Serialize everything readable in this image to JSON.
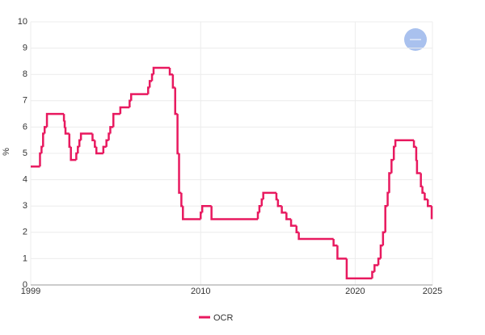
{
  "chart_data": {
    "type": "line",
    "step": true,
    "y_label": "%",
    "x": [
      1999,
      1999.6,
      1999.7,
      1999.8,
      1999.9,
      2000.05,
      2001.15,
      2001.2,
      2001.25,
      2001.5,
      2001.6,
      2001.95,
      2002.05,
      2002.15,
      2002.25,
      2003.0,
      2003.15,
      2003.25,
      2003.7,
      2003.9,
      2004.05,
      2004.15,
      2004.35,
      2004.8,
      2005.4,
      2005.5,
      2006.6,
      2006.7,
      2006.85,
      2006.95,
      2008.0,
      2008.2,
      2008.35,
      2008.5,
      2008.6,
      2008.75,
      2008.85,
      2010.0,
      2010.1,
      2010.7,
      2013.7,
      2013.8,
      2013.95,
      2014.05,
      2014.9,
      2015.0,
      2015.25,
      2015.55,
      2015.85,
      2016.2,
      2016.35,
      2018.6,
      2018.85,
      2019.45,
      2021.1,
      2021.25,
      2021.5,
      2021.65,
      2021.8,
      2021.95,
      2022.1,
      2022.2,
      2022.35,
      2022.5,
      2022.6,
      2023.8,
      2023.95,
      2024.0,
      2024.25,
      2024.35,
      2024.5,
      2024.7,
      2024.95
    ],
    "series": [
      {
        "name": "OCR",
        "color": "#e8195f",
        "values": [
          4.5,
          5.0,
          5.25,
          5.75,
          6.0,
          6.5,
          6.25,
          6.0,
          5.75,
          5.25,
          4.75,
          5.0,
          5.25,
          5.5,
          5.75,
          5.5,
          5.25,
          5.0,
          5.25,
          5.5,
          5.75,
          6.0,
          6.5,
          6.75,
          7.0,
          7.25,
          7.5,
          7.75,
          8.0,
          8.25,
          8.0,
          7.5,
          6.5,
          5.0,
          3.5,
          3.0,
          2.5,
          2.75,
          3.0,
          2.5,
          2.75,
          3.0,
          3.25,
          3.5,
          3.25,
          3.0,
          2.75,
          2.5,
          2.25,
          2.0,
          1.75,
          1.5,
          1.0,
          0.25,
          0.5,
          0.75,
          1.0,
          1.5,
          2.0,
          3.0,
          3.5,
          4.25,
          4.75,
          5.25,
          5.5,
          5.25,
          4.75,
          4.25,
          3.75,
          3.5,
          3.25,
          3.0,
          2.5
        ]
      }
    ],
    "xlim": [
      1999,
      2025
    ],
    "xticks": [
      1999,
      2010,
      2020,
      2025
    ],
    "ylim": [
      0,
      10
    ],
    "yticks": [
      0,
      1,
      2,
      3,
      4,
      5,
      6,
      7,
      8,
      9,
      10
    ],
    "grid": true
  }
}
